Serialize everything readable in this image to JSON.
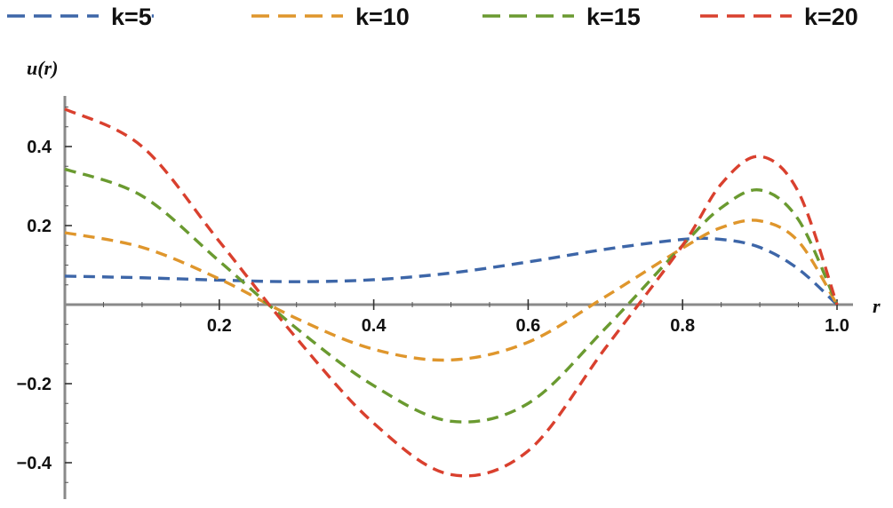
{
  "chart_data": {
    "type": "line",
    "title": "",
    "xlabel": "r",
    "ylabel": "u(r)",
    "xlim": [
      0,
      1.0
    ],
    "ylim": [
      -0.48,
      0.52
    ],
    "grid": false,
    "legend_position": "top",
    "x_ticks": [
      {
        "value": 0.2,
        "label": "0.2"
      },
      {
        "value": 0.4,
        "label": "0.4"
      },
      {
        "value": 0.6,
        "label": "0.6"
      },
      {
        "value": 0.8,
        "label": "0.8"
      },
      {
        "value": 1.0,
        "label": "1.0"
      }
    ],
    "y_ticks": [
      {
        "value": 0.4,
        "label": "0.4"
      },
      {
        "value": 0.2,
        "label": "0.2"
      },
      {
        "value": -0.2,
        "label": "−0.2"
      },
      {
        "value": -0.4,
        "label": "−0.4"
      }
    ],
    "x": [
      0.0,
      0.1,
      0.2,
      0.3,
      0.4,
      0.5,
      0.6,
      0.7,
      0.8,
      0.85,
      0.9,
      0.95,
      1.0
    ],
    "series": [
      {
        "name": "k=5",
        "color": "#3d66a8",
        "values": [
          0.072,
          0.068,
          0.062,
          0.058,
          0.063,
          0.08,
          0.108,
          0.14,
          0.165,
          0.165,
          0.145,
          0.09,
          0.0
        ]
      },
      {
        "name": "k=10",
        "color": "#df962c",
        "values": [
          0.182,
          0.145,
          0.065,
          -0.035,
          -0.113,
          -0.14,
          -0.095,
          0.02,
          0.143,
          0.195,
          0.212,
          0.16,
          0.0
        ]
      },
      {
        "name": "k=15",
        "color": "#6a9a30",
        "values": [
          0.343,
          0.275,
          0.11,
          -0.06,
          -0.205,
          -0.295,
          -0.25,
          -0.06,
          0.15,
          0.245,
          0.29,
          0.215,
          0.0
        ]
      },
      {
        "name": "k=20",
        "color": "#d9402e",
        "values": [
          0.495,
          0.4,
          0.16,
          -0.085,
          -0.3,
          -0.43,
          -0.37,
          -0.11,
          0.15,
          0.305,
          0.375,
          0.285,
          0.0
        ]
      }
    ]
  }
}
